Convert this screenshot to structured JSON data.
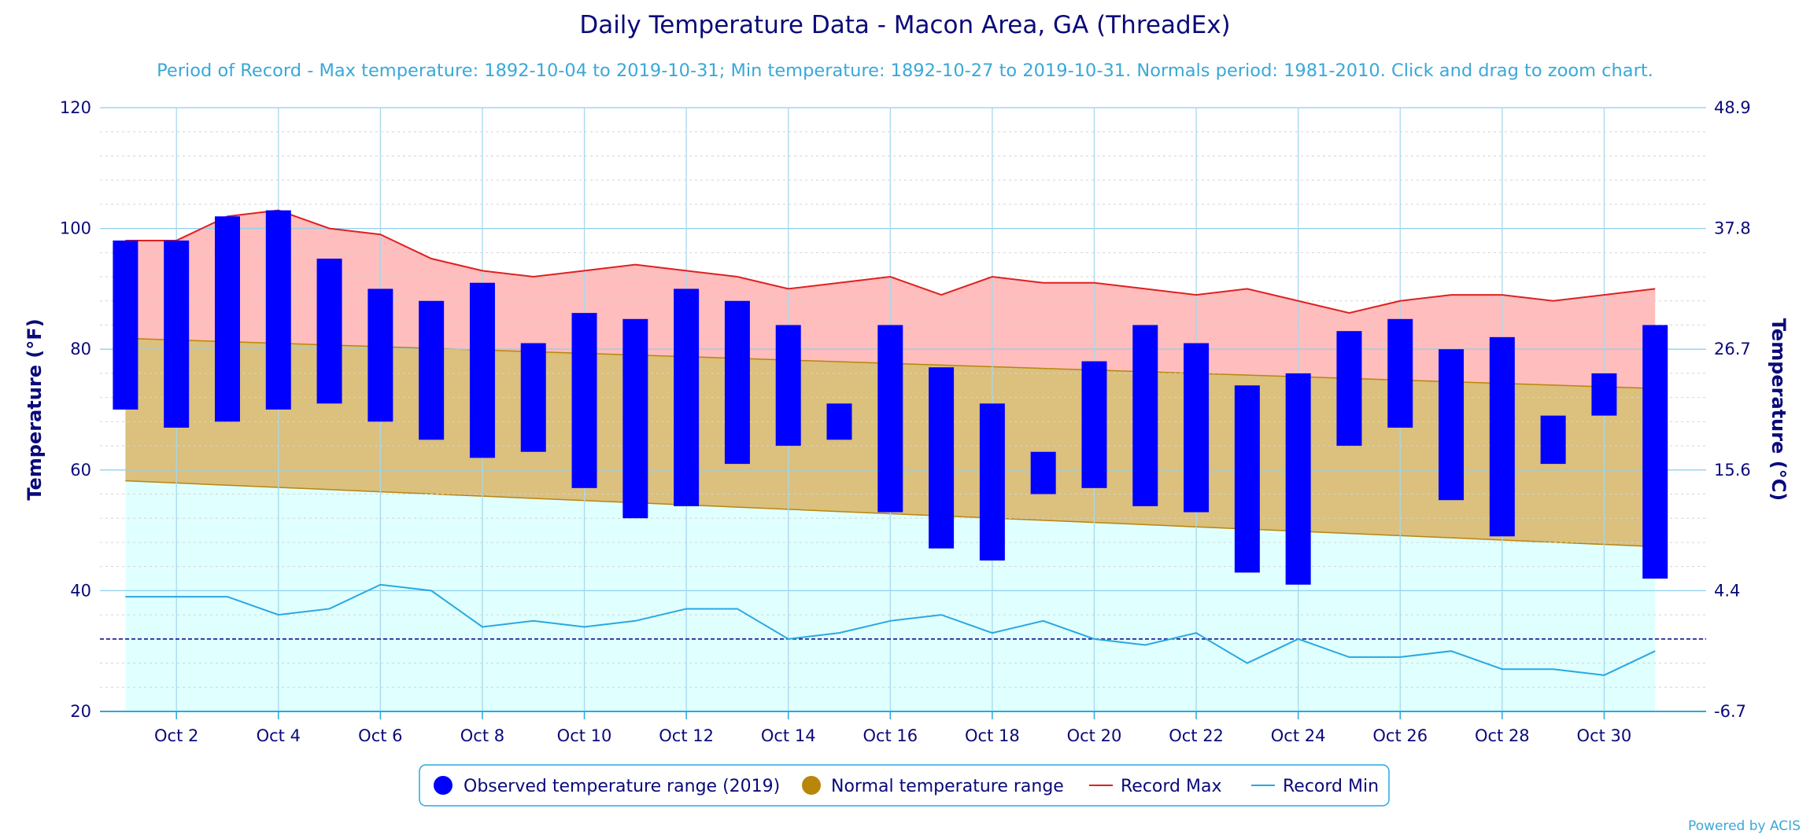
{
  "chart_data": {
    "type": "bar",
    "title": "Daily Temperature Data - Macon Area, GA (ThreadEx)",
    "subtitle": "Period of Record - Max temperature: 1892-10-04 to 2019-10-31; Min temperature: 1892-10-27 to 2019-10-31. Normals period: 1981-2010. Click and drag to zoom chart.",
    "ylabel": "Temperature (°F)",
    "ylabel_right": "Temperature (°C)",
    "ylim": [
      20,
      120
    ],
    "yticks": [
      20,
      40,
      60,
      80,
      100,
      120
    ],
    "yticks_right": [
      "-6.7",
      "4.4",
      "15.6",
      "26.7",
      "37.8",
      "48.9"
    ],
    "x_days": [
      1,
      2,
      3,
      4,
      5,
      6,
      7,
      8,
      9,
      10,
      11,
      12,
      13,
      14,
      15,
      16,
      17,
      18,
      19,
      20,
      21,
      22,
      23,
      24,
      25,
      26,
      27,
      28,
      29,
      30,
      31
    ],
    "xtick_days": [
      2,
      4,
      6,
      8,
      10,
      12,
      14,
      16,
      18,
      20,
      22,
      24,
      26,
      28,
      30
    ],
    "xtick_labels": [
      "Oct 2",
      "Oct 4",
      "Oct 6",
      "Oct 8",
      "Oct 10",
      "Oct 12",
      "Oct 14",
      "Oct 16",
      "Oct 18",
      "Oct 20",
      "Oct 22",
      "Oct 24",
      "Oct 26",
      "Oct 28",
      "Oct 30"
    ],
    "freezing_line": 32,
    "series": [
      {
        "name": "Observed temperature range (2019)",
        "color": "#0000ff",
        "low": [
          70,
          67,
          68,
          70,
          71,
          68,
          65,
          62,
          63,
          57,
          52,
          54,
          61,
          64,
          65,
          53,
          47,
          45,
          56,
          57,
          54,
          53,
          43,
          41,
          64,
          67,
          55,
          49,
          61,
          69,
          42
        ],
        "high": [
          98,
          98,
          102,
          103,
          95,
          90,
          88,
          91,
          81,
          86,
          85,
          90,
          88,
          84,
          71,
          84,
          77,
          71,
          63,
          78,
          84,
          81,
          74,
          76,
          83,
          85,
          80,
          82,
          69,
          76,
          84
        ]
      },
      {
        "name": "Normal temperature range",
        "color": "#b8860b",
        "fill": "#dbc07e",
        "low_start": 58.2,
        "low_end": 47.3,
        "high_start": 81.8,
        "high_end": 73.5
      },
      {
        "name": "Record Max",
        "color": "#e02020",
        "fill": "#ffbdbd",
        "values": [
          98,
          98,
          102,
          103,
          100,
          99,
          95,
          93,
          92,
          93,
          94,
          93,
          92,
          90,
          91,
          92,
          89,
          92,
          91,
          91,
          90,
          89,
          90,
          88,
          86,
          88,
          89,
          89,
          88,
          89,
          90
        ]
      },
      {
        "name": "Record Min",
        "color": "#29a8e0",
        "fill": "#e0ffff",
        "values": [
          39,
          39,
          39,
          36,
          37,
          41,
          40,
          34,
          35,
          34,
          35,
          37,
          37,
          32,
          33,
          35,
          36,
          33,
          35,
          32,
          31,
          33,
          28,
          32,
          29,
          29,
          30,
          27,
          27,
          26,
          30
        ]
      }
    ],
    "legend_position": "bottom-center",
    "grid": true
  },
  "credit": "Powered by ACIS"
}
